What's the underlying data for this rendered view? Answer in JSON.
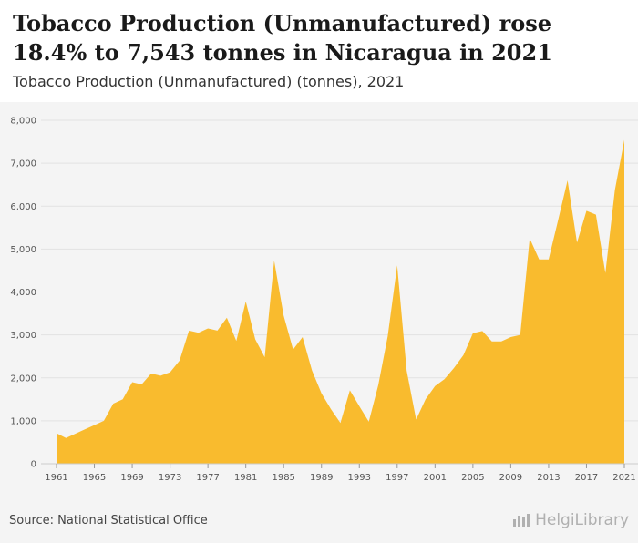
{
  "header": {
    "title": "Tobacco Production (Unmanufactured) rose 18.4% to 7,543 tonnes in Nicaragua in 2021",
    "subtitle": "Tobacco Production (Unmanufactured) (tonnes), 2021"
  },
  "footer": {
    "source": "Source: National Statistical Office",
    "logo_text": "HelgiLibrary"
  },
  "chart_data": {
    "type": "area",
    "title": "Tobacco Production (Unmanufactured) rose 18.4% to 7,543 tonnes in Nicaragua in 2021",
    "subtitle": "Tobacco Production (Unmanufactured) (tonnes), 2021",
    "xlabel": "",
    "ylabel": "",
    "color": "#f9bb2e",
    "x": [
      1961,
      1962,
      1963,
      1964,
      1965,
      1966,
      1967,
      1968,
      1969,
      1970,
      1971,
      1972,
      1973,
      1974,
      1975,
      1976,
      1977,
      1978,
      1979,
      1980,
      1981,
      1982,
      1983,
      1984,
      1985,
      1986,
      1987,
      1988,
      1989,
      1990,
      1991,
      1992,
      1993,
      1994,
      1995,
      1996,
      1997,
      1998,
      1999,
      2000,
      2001,
      2002,
      2003,
      2004,
      2005,
      2006,
      2007,
      2008,
      2009,
      2010,
      2011,
      2012,
      2013,
      2014,
      2015,
      2016,
      2017,
      2018,
      2019,
      2020,
      2021
    ],
    "values": [
      710,
      600,
      700,
      800,
      900,
      1000,
      1400,
      1500,
      1900,
      1850,
      2100,
      2050,
      2130,
      2400,
      3100,
      3050,
      3150,
      3100,
      3400,
      2860,
      3780,
      2900,
      2480,
      4730,
      3450,
      2660,
      2950,
      2170,
      1640,
      1270,
      950,
      1710,
      1340,
      980,
      1830,
      2970,
      4620,
      2170,
      1030,
      1500,
      1810,
      1970,
      2230,
      2530,
      3040,
      3090,
      2850,
      2850,
      2950,
      3000,
      5250,
      4760,
      4760,
      5670,
      6600,
      5150,
      5890,
      5800,
      4440,
      6370,
      7543
    ],
    "xticks": [
      "1961",
      "1965",
      "1969",
      "1973",
      "1977",
      "1981",
      "1985",
      "1989",
      "1993",
      "1997",
      "2001",
      "2005",
      "2009",
      "2013",
      "2017",
      "2021"
    ],
    "yticks": [
      "0",
      "1,000",
      "2,000",
      "3,000",
      "4,000",
      "5,000",
      "6,000",
      "7,000",
      "8,000"
    ],
    "ylim": [
      0,
      8000
    ],
    "xlim": [
      1961,
      2021
    ],
    "grid": true,
    "legend": "none"
  }
}
